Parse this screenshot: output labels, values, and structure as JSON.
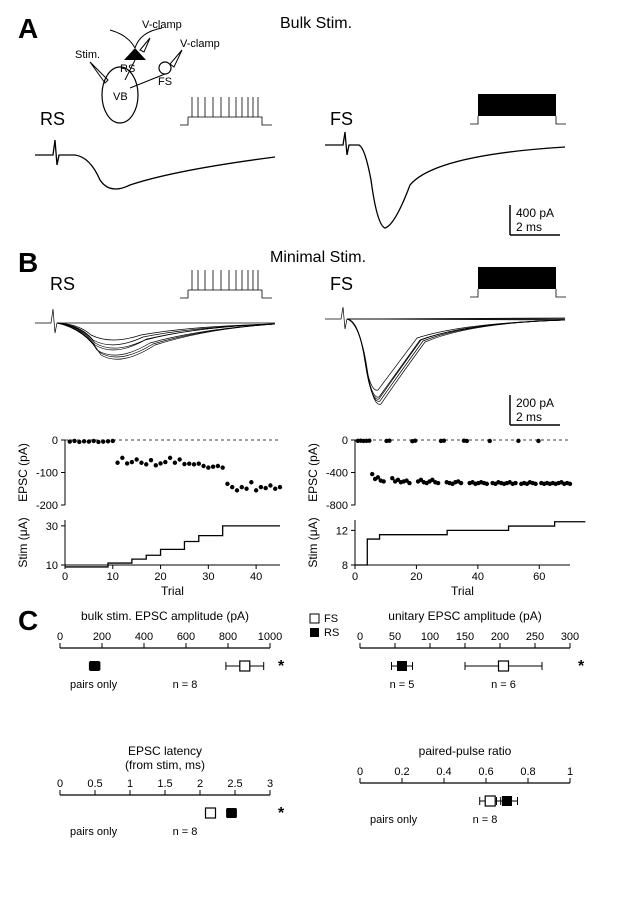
{
  "panelA": {
    "label": "A",
    "title": "Bulk Stim.",
    "diagram_labels": {
      "vclamp1": "V-clamp",
      "vclamp2": "V-clamp",
      "stim": "Stim.",
      "rs": "RS",
      "fs": "FS",
      "vb": "VB"
    },
    "rs_label": "RS",
    "fs_label": "FS",
    "scale_y": "400 pA",
    "scale_x": "2 ms",
    "colors": {
      "line": "#000000",
      "bg": "#ffffff"
    },
    "rs_trace_peak": -120,
    "fs_trace_peak": -900
  },
  "panelB": {
    "label": "B",
    "title": "Minimal Stim.",
    "rs_label": "RS",
    "fs_label": "FS",
    "scale_y": "200 pA",
    "scale_x": "2 ms",
    "rs_epsc": {
      "ylabel": "EPSC (pA)",
      "yticks": [
        0,
        -100,
        -200
      ],
      "xmax": 45,
      "points": [
        [
          1,
          -5
        ],
        [
          2,
          -3
        ],
        [
          3,
          -6
        ],
        [
          4,
          -4
        ],
        [
          5,
          -5
        ],
        [
          6,
          -3
        ],
        [
          7,
          -6
        ],
        [
          8,
          -5
        ],
        [
          9,
          -4
        ],
        [
          10,
          -3
        ],
        [
          11,
          -70
        ],
        [
          12,
          -55
        ],
        [
          13,
          -72
        ],
        [
          14,
          -68
        ],
        [
          15,
          -60
        ],
        [
          16,
          -70
        ],
        [
          17,
          -75
        ],
        [
          18,
          -62
        ],
        [
          19,
          -78
        ],
        [
          20,
          -72
        ],
        [
          21,
          -68
        ],
        [
          22,
          -55
        ],
        [
          23,
          -70
        ],
        [
          24,
          -60
        ],
        [
          25,
          -74
        ],
        [
          26,
          -73
        ],
        [
          27,
          -75
        ],
        [
          28,
          -73
        ],
        [
          29,
          -80
        ],
        [
          30,
          -85
        ],
        [
          31,
          -82
        ],
        [
          32,
          -80
        ],
        [
          33,
          -85
        ],
        [
          34,
          -135
        ],
        [
          35,
          -145
        ],
        [
          36,
          -155
        ],
        [
          37,
          -145
        ],
        [
          38,
          -150
        ],
        [
          39,
          -130
        ],
        [
          40,
          -155
        ],
        [
          41,
          -145
        ],
        [
          42,
          -148
        ],
        [
          43,
          -140
        ],
        [
          44,
          -150
        ],
        [
          45,
          -145
        ]
      ]
    },
    "rs_stim": {
      "ylabel": "Stim (μA)",
      "yticks": [
        10,
        30
      ],
      "xlabel": "Trial",
      "xticks": [
        0,
        10,
        20,
        30,
        40
      ],
      "line": [
        [
          0,
          9
        ],
        [
          9,
          9
        ],
        [
          9,
          11
        ],
        [
          14,
          11
        ],
        [
          14,
          13
        ],
        [
          17,
          13
        ],
        [
          17,
          15
        ],
        [
          20,
          15
        ],
        [
          20,
          18
        ],
        [
          25,
          18
        ],
        [
          25,
          22
        ],
        [
          28,
          22
        ],
        [
          28,
          25
        ],
        [
          33,
          25
        ],
        [
          33,
          30
        ],
        [
          45,
          30
        ]
      ]
    },
    "fs_epsc": {
      "ylabel": "EPSC (pA)",
      "yticks": [
        0,
        -400,
        -800
      ],
      "xmax": 75,
      "points": [
        [
          1,
          -10
        ],
        [
          2,
          -8
        ],
        [
          3,
          -12
        ],
        [
          4,
          -10
        ],
        [
          5,
          -8
        ],
        [
          6,
          -420
        ],
        [
          7,
          -480
        ],
        [
          8,
          -460
        ],
        [
          9,
          -500
        ],
        [
          10,
          -510
        ],
        [
          11,
          -12
        ],
        [
          12,
          -8
        ],
        [
          13,
          -470
        ],
        [
          14,
          -510
        ],
        [
          15,
          -490
        ],
        [
          16,
          -520
        ],
        [
          17,
          -510
        ],
        [
          18,
          -500
        ],
        [
          19,
          -530
        ],
        [
          20,
          -15
        ],
        [
          21,
          -8
        ],
        [
          22,
          -510
        ],
        [
          23,
          -490
        ],
        [
          24,
          -520
        ],
        [
          25,
          -530
        ],
        [
          26,
          -510
        ],
        [
          27,
          -490
        ],
        [
          28,
          -520
        ],
        [
          29,
          -530
        ],
        [
          30,
          -12
        ],
        [
          31,
          -8
        ],
        [
          32,
          -520
        ],
        [
          33,
          -530
        ],
        [
          34,
          -540
        ],
        [
          35,
          -520
        ],
        [
          36,
          -510
        ],
        [
          37,
          -530
        ],
        [
          38,
          -8
        ],
        [
          39,
          -12
        ],
        [
          40,
          -530
        ],
        [
          41,
          -520
        ],
        [
          42,
          -540
        ],
        [
          43,
          -530
        ],
        [
          44,
          -520
        ],
        [
          45,
          -530
        ],
        [
          46,
          -540
        ],
        [
          47,
          -12
        ],
        [
          48,
          -530
        ],
        [
          49,
          -540
        ],
        [
          50,
          -520
        ],
        [
          51,
          -530
        ],
        [
          52,
          -540
        ],
        [
          53,
          -530
        ],
        [
          54,
          -520
        ],
        [
          55,
          -540
        ],
        [
          56,
          -530
        ],
        [
          57,
          -10
        ],
        [
          58,
          -540
        ],
        [
          59,
          -530
        ],
        [
          60,
          -540
        ],
        [
          61,
          -520
        ],
        [
          62,
          -530
        ],
        [
          63,
          -540
        ],
        [
          64,
          -12
        ],
        [
          65,
          -530
        ],
        [
          66,
          -540
        ],
        [
          67,
          -530
        ],
        [
          68,
          -540
        ],
        [
          69,
          -530
        ],
        [
          70,
          -540
        ],
        [
          71,
          -530
        ],
        [
          72,
          -520
        ],
        [
          73,
          -540
        ],
        [
          74,
          -530
        ],
        [
          75,
          -540
        ]
      ]
    },
    "fs_stim": {
      "ylabel": "Stim (μA)",
      "yticks": [
        8,
        12
      ],
      "xlabel": "Trial",
      "xticks": [
        0,
        20,
        40,
        60
      ],
      "line": [
        [
          0,
          8
        ],
        [
          4,
          8
        ],
        [
          4,
          11
        ],
        [
          8,
          11
        ],
        [
          8,
          11.5
        ],
        [
          30,
          11.5
        ],
        [
          30,
          12
        ],
        [
          50,
          12
        ],
        [
          50,
          12.5
        ],
        [
          65,
          12.5
        ],
        [
          65,
          13
        ],
        [
          75,
          13
        ]
      ]
    }
  },
  "panelC": {
    "label": "C",
    "legend": {
      "fs": "FS",
      "rs": "RS"
    },
    "plots": [
      {
        "title": "bulk stim. EPSC amplitude (pA)",
        "xmin": 0,
        "xmax": 1000,
        "xticks": [
          0,
          200,
          400,
          600,
          800,
          1000
        ],
        "rs": {
          "mean": 165,
          "err": 25
        },
        "fs": {
          "mean": 880,
          "err": 90
        },
        "note": "pairs only",
        "n": "n = 8",
        "sig": "*"
      },
      {
        "title": "unitary EPSC amplitude (pA)",
        "xmin": 0,
        "xmax": 300,
        "xticks": [
          0,
          50,
          100,
          150,
          200,
          250,
          300
        ],
        "rs": {
          "mean": 60,
          "err": 15,
          "n": "n = 5"
        },
        "fs": {
          "mean": 205,
          "err": 55,
          "n": "n = 6"
        },
        "note": "",
        "sig": "*"
      },
      {
        "title": "EPSC latency",
        "subtitle": "(from stim, ms)",
        "xmin": 0,
        "xmax": 3,
        "xticks": [
          0.0,
          0.5,
          1.0,
          1.5,
          2.0,
          2.5,
          3.0
        ],
        "rs": {
          "mean": 2.45,
          "err": 0.07
        },
        "fs": {
          "mean": 2.15,
          "err": 0.07
        },
        "note": "pairs only",
        "n": "n = 8",
        "sig": "*"
      },
      {
        "title": "paired-pulse ratio",
        "xmin": 0,
        "xmax": 1,
        "xticks": [
          0.0,
          0.2,
          0.4,
          0.6,
          0.8,
          1.0
        ],
        "rs": {
          "mean": 0.7,
          "err": 0.05
        },
        "fs": {
          "mean": 0.62,
          "err": 0.05
        },
        "note": "pairs only",
        "n": "n = 8",
        "sig": ""
      }
    ]
  }
}
